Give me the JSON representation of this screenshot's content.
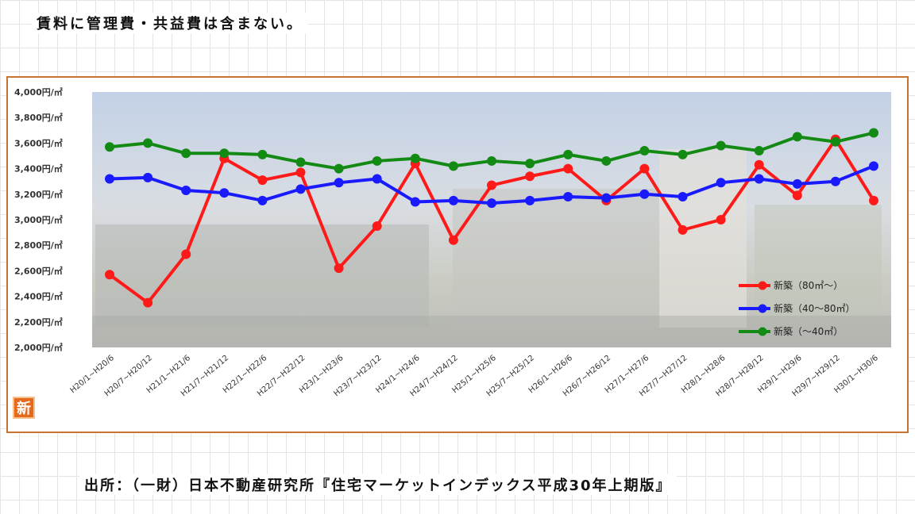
{
  "header": {
    "note": "賃料に管理費・共益費は含まない。"
  },
  "footer": {
    "source": "出所：（一財）日本不動産研究所『住宅マーケットインデックス平成30年上期版』"
  },
  "logo": {
    "text": "新"
  },
  "chart_data": {
    "type": "line",
    "title": "",
    "xlabel": "",
    "ylabel": "",
    "ylim": [
      2000,
      4000
    ],
    "yticks": [
      2000,
      2200,
      2400,
      2600,
      2800,
      3000,
      3200,
      3400,
      3600,
      3800,
      4000
    ],
    "ytick_suffix": "円/㎡",
    "categories": [
      "H20/1~H20/6",
      "H20/7~H20/12",
      "H21/1~H21/6",
      "H21/7~H21/12",
      "H22/1~H22/6",
      "H22/7~H22/12",
      "H23/1~H23/6",
      "H23/7~H23/12",
      "H24/1~H24/6",
      "H24/7~H24/12",
      "H25/1~H25/6",
      "H25/7~H25/12",
      "H26/1~H26/6",
      "H26/7~H26/12",
      "H27/1~H27/6",
      "H27/7~H27/12",
      "H28/1~H28/6",
      "H28/7~H28/12",
      "H29/1~H29/6",
      "H29/7~H29/12",
      "H30/1~H30/6"
    ],
    "series": [
      {
        "name": "新築（80㎡～）",
        "color": "#ff1a1a",
        "values": [
          2570,
          2350,
          2730,
          3480,
          3310,
          3370,
          2620,
          2950,
          3440,
          2840,
          3270,
          3340,
          3400,
          3150,
          3400,
          2920,
          3000,
          3430,
          3190,
          3630,
          3150
        ]
      },
      {
        "name": "新築（40～80㎡）",
        "color": "#1a1aff",
        "values": [
          3320,
          3330,
          3230,
          3210,
          3150,
          3240,
          3290,
          3320,
          3140,
          3150,
          3130,
          3150,
          3180,
          3170,
          3200,
          3180,
          3290,
          3320,
          3280,
          3300,
          3420
        ]
      },
      {
        "name": "新築（～40㎡）",
        "color": "#138a13",
        "values": [
          3570,
          3600,
          3520,
          3520,
          3510,
          3450,
          3400,
          3460,
          3480,
          3420,
          3460,
          3440,
          3510,
          3460,
          3540,
          3510,
          3580,
          3540,
          3650,
          3610,
          3680
        ]
      }
    ],
    "legend_position": "bottom-right",
    "grid": false
  }
}
